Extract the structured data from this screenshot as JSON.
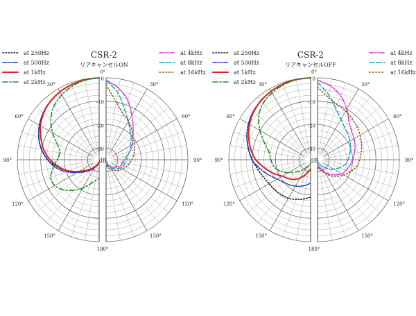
{
  "chart_data": [
    {
      "type": "polar",
      "title": "CSR-2",
      "subtitle": "リアキャンセルON",
      "radial_unit": "dB",
      "rlim": [
        -35,
        0
      ],
      "radial_ticks": [
        "0",
        "-10",
        "-20",
        "-30"
      ],
      "angle_ticks": [
        "0°",
        "30°",
        "60°",
        "90°",
        "120°",
        "150°",
        "180°"
      ],
      "angles_deg": [
        0,
        10,
        20,
        30,
        40,
        50,
        60,
        70,
        80,
        90,
        100,
        110,
        120,
        130,
        140,
        150,
        160,
        170,
        180
      ],
      "series": [
        {
          "name": "at 250Hz",
          "side": "left",
          "color": "#111111",
          "dash": "1.5 2.5",
          "width": 1.6,
          "values": [
            0,
            -0.3,
            -0.8,
            -1.5,
            -2.5,
            -3.8,
            -5.5,
            -7.5,
            -10,
            -13,
            -17,
            -21,
            -25,
            -28,
            -30,
            -32,
            -33,
            -34,
            -34.5
          ]
        },
        {
          "name": "at 500Hz",
          "side": "left",
          "color": "#1a2fbf",
          "dash": "6 2 1.5 2 1.5 2",
          "width": 1.6,
          "values": [
            0,
            -0.3,
            -0.8,
            -1.5,
            -2.5,
            -3.8,
            -5.5,
            -7.5,
            -10,
            -13,
            -16,
            -20,
            -24,
            -27,
            -29,
            -31,
            -32.5,
            -33.5,
            -34
          ]
        },
        {
          "name": "at 1kHz",
          "side": "left",
          "color": "#dd1f1f",
          "dash": "",
          "width": 2,
          "values": [
            0,
            -0.3,
            -0.8,
            -1.5,
            -2.5,
            -4,
            -6,
            -8.5,
            -11,
            -14,
            -17.5,
            -21,
            -25,
            -28,
            -30,
            -31.5,
            -32.5,
            -33.5,
            -34
          ]
        },
        {
          "name": "at 2kHz",
          "side": "left",
          "color": "#1a8a2a",
          "dash": "7 3 2 3",
          "width": 1.6,
          "values": [
            0,
            -0.5,
            -1.5,
            -3,
            -5,
            -8,
            -12,
            -16,
            -18,
            -17,
            -15,
            -13,
            -13,
            -15,
            -18,
            -21,
            -24,
            -26,
            -27
          ]
        },
        {
          "name": "at 4kHz",
          "side": "right",
          "color": "#d62ad6",
          "dash": "6 2 1.5 2 1.5 2",
          "width": 1.5,
          "values": [
            -1,
            -4,
            -8,
            -13,
            -17,
            -20,
            -22,
            -24,
            -26,
            -27,
            -28,
            -28,
            -29,
            -30,
            -31,
            -32,
            -33,
            -34,
            -34.5
          ]
        },
        {
          "name": "at 8kHz",
          "side": "right",
          "color": "#1aa3b5",
          "dash": "7 3",
          "width": 1.5,
          "values": [
            -1,
            -6,
            -12,
            -16,
            -19,
            -21,
            -23,
            -24,
            -26,
            -26,
            -27,
            -27,
            -28,
            -29,
            -30,
            -31,
            -32,
            -33,
            -34
          ]
        },
        {
          "name": "at 16kHz",
          "side": "right",
          "color": "#8a5a1a",
          "dash": "1.5 3",
          "width": 1.6,
          "values": [
            -3,
            -10,
            -14,
            -16,
            -18,
            -20,
            -21,
            -22,
            -23,
            -24,
            -25,
            -26,
            -27,
            -28,
            -29,
            -30,
            -31,
            -32,
            -33
          ]
        }
      ]
    },
    {
      "type": "polar",
      "title": "CSR-2",
      "subtitle": "リアキャンセルOFF",
      "radial_unit": "dB",
      "rlim": [
        -35,
        0
      ],
      "radial_ticks": [
        "0",
        "-10",
        "-20",
        "-30"
      ],
      "angle_ticks": [
        "0°",
        "30°",
        "60°",
        "90°",
        "120°",
        "150°",
        "180°"
      ],
      "angles_deg": [
        0,
        10,
        20,
        30,
        40,
        50,
        60,
        70,
        80,
        90,
        100,
        110,
        120,
        130,
        140,
        150,
        160,
        170,
        180
      ],
      "series": [
        {
          "name": "at 250Hz",
          "side": "left",
          "color": "#111111",
          "dash": "1.5 2.5",
          "width": 1.6,
          "values": [
            0,
            -0.2,
            -0.6,
            -1.2,
            -2,
            -3,
            -4.3,
            -6,
            -8,
            -10,
            -12,
            -13.5,
            -14.5,
            -15,
            -15.5,
            -16,
            -17,
            -18,
            -19
          ]
        },
        {
          "name": "at 500Hz",
          "side": "left",
          "color": "#1a2fbf",
          "dash": "6 2 1.5 2 1.5 2",
          "width": 1.6,
          "values": [
            0,
            -0.2,
            -0.6,
            -1.2,
            -2,
            -3,
            -4.3,
            -6,
            -8,
            -10,
            -13,
            -16,
            -18.5,
            -20,
            -21,
            -22,
            -23,
            -24,
            -25
          ]
        },
        {
          "name": "at 1kHz",
          "side": "left",
          "color": "#dd1f1f",
          "dash": "",
          "width": 2,
          "values": [
            0,
            -0.2,
            -0.6,
            -1.2,
            -2,
            -3.2,
            -4.8,
            -6.8,
            -9,
            -11.5,
            -15,
            -18,
            -21,
            -22.5,
            -24,
            -26,
            -28,
            -30,
            -31
          ]
        },
        {
          "name": "at 2kHz",
          "side": "left",
          "color": "#1a8a2a",
          "dash": "7 3 2 3",
          "width": 1.6,
          "values": [
            0,
            -0.3,
            -1,
            -2,
            -3.5,
            -6,
            -10,
            -14,
            -17,
            -18,
            -19,
            -21,
            -24,
            -27,
            -29,
            -31,
            -32,
            -33,
            -33.5
          ]
        },
        {
          "name": "at 4kHz",
          "side": "right",
          "color": "#d62ad6",
          "dash": "6 2 1.5 2 1.5 2",
          "width": 1.5,
          "values": [
            -1,
            -3,
            -6,
            -10,
            -14,
            -16,
            -17,
            -18,
            -19,
            -20,
            -21,
            -22,
            -23,
            -25,
            -27,
            -29,
            -31,
            -32,
            -33
          ]
        },
        {
          "name": "at 8kHz",
          "side": "right",
          "color": "#1aa3b5",
          "dash": "7 3",
          "width": 1.5,
          "values": [
            -2,
            -7,
            -12,
            -15,
            -17,
            -18,
            -19,
            -20,
            -21,
            -22,
            -23,
            -25,
            -27,
            -29,
            -31,
            -32,
            -33,
            -34,
            -34.5
          ]
        },
        {
          "name": "at 16kHz",
          "side": "right",
          "color": "#8a5a1a",
          "dash": "1.5 3",
          "width": 1.6,
          "values": [
            -4,
            -8,
            -10,
            -11,
            -12,
            -13,
            -14,
            -15,
            -16,
            -17,
            -18,
            -20,
            -22,
            -24,
            -26,
            -28,
            -30,
            -31,
            -32
          ]
        }
      ]
    }
  ]
}
